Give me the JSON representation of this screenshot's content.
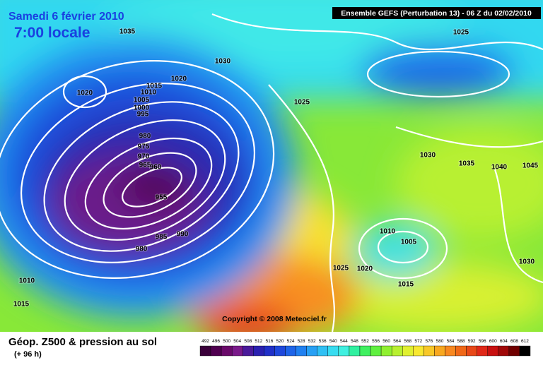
{
  "header": {
    "date": "Samedi 6 février 2010",
    "time": "7:00 locale",
    "run": "Ensemble GEFS (Perturbation 13)  -  06 Z du 02/02/2010"
  },
  "copyright": "Copyright © 2008 Meteociel.fr",
  "footer": {
    "title": "Géop. Z500 & pression au sol",
    "lead": "(+ 96 h)"
  },
  "isobars": [
    1035,
    1030,
    1025,
    1020,
    1020,
    1015,
    1010,
    1005,
    1000,
    995,
    1025,
    980,
    975,
    970,
    965,
    960,
    955,
    985,
    990,
    980,
    1030,
    1035,
    1040,
    1045,
    1010,
    1005,
    1025,
    1020,
    1015,
    1030,
    1010,
    1015
  ],
  "color_scale": {
    "labels": [
      492,
      496,
      500,
      504,
      508,
      512,
      516,
      520,
      524,
      528,
      532,
      536,
      540,
      544,
      548,
      552,
      556,
      560,
      564,
      568,
      572,
      576,
      580,
      584,
      588,
      592,
      596,
      600,
      604,
      608,
      612
    ],
    "colors": [
      "#3a003a",
      "#500050",
      "#6a0a6a",
      "#7a1a8a",
      "#4a1a9a",
      "#2a20b0",
      "#2030c8",
      "#1e48dc",
      "#1e64e8",
      "#2080f0",
      "#28a0f4",
      "#30c0f4",
      "#38dcf0",
      "#40f0e0",
      "#30f0a0",
      "#40f060",
      "#60f040",
      "#90f030",
      "#b8f030",
      "#e0f030",
      "#f8e830",
      "#f8c828",
      "#f8a820",
      "#f88820",
      "#f06818",
      "#e84818",
      "#e02818",
      "#c81010",
      "#a00808",
      "#700000",
      "#000000"
    ]
  }
}
